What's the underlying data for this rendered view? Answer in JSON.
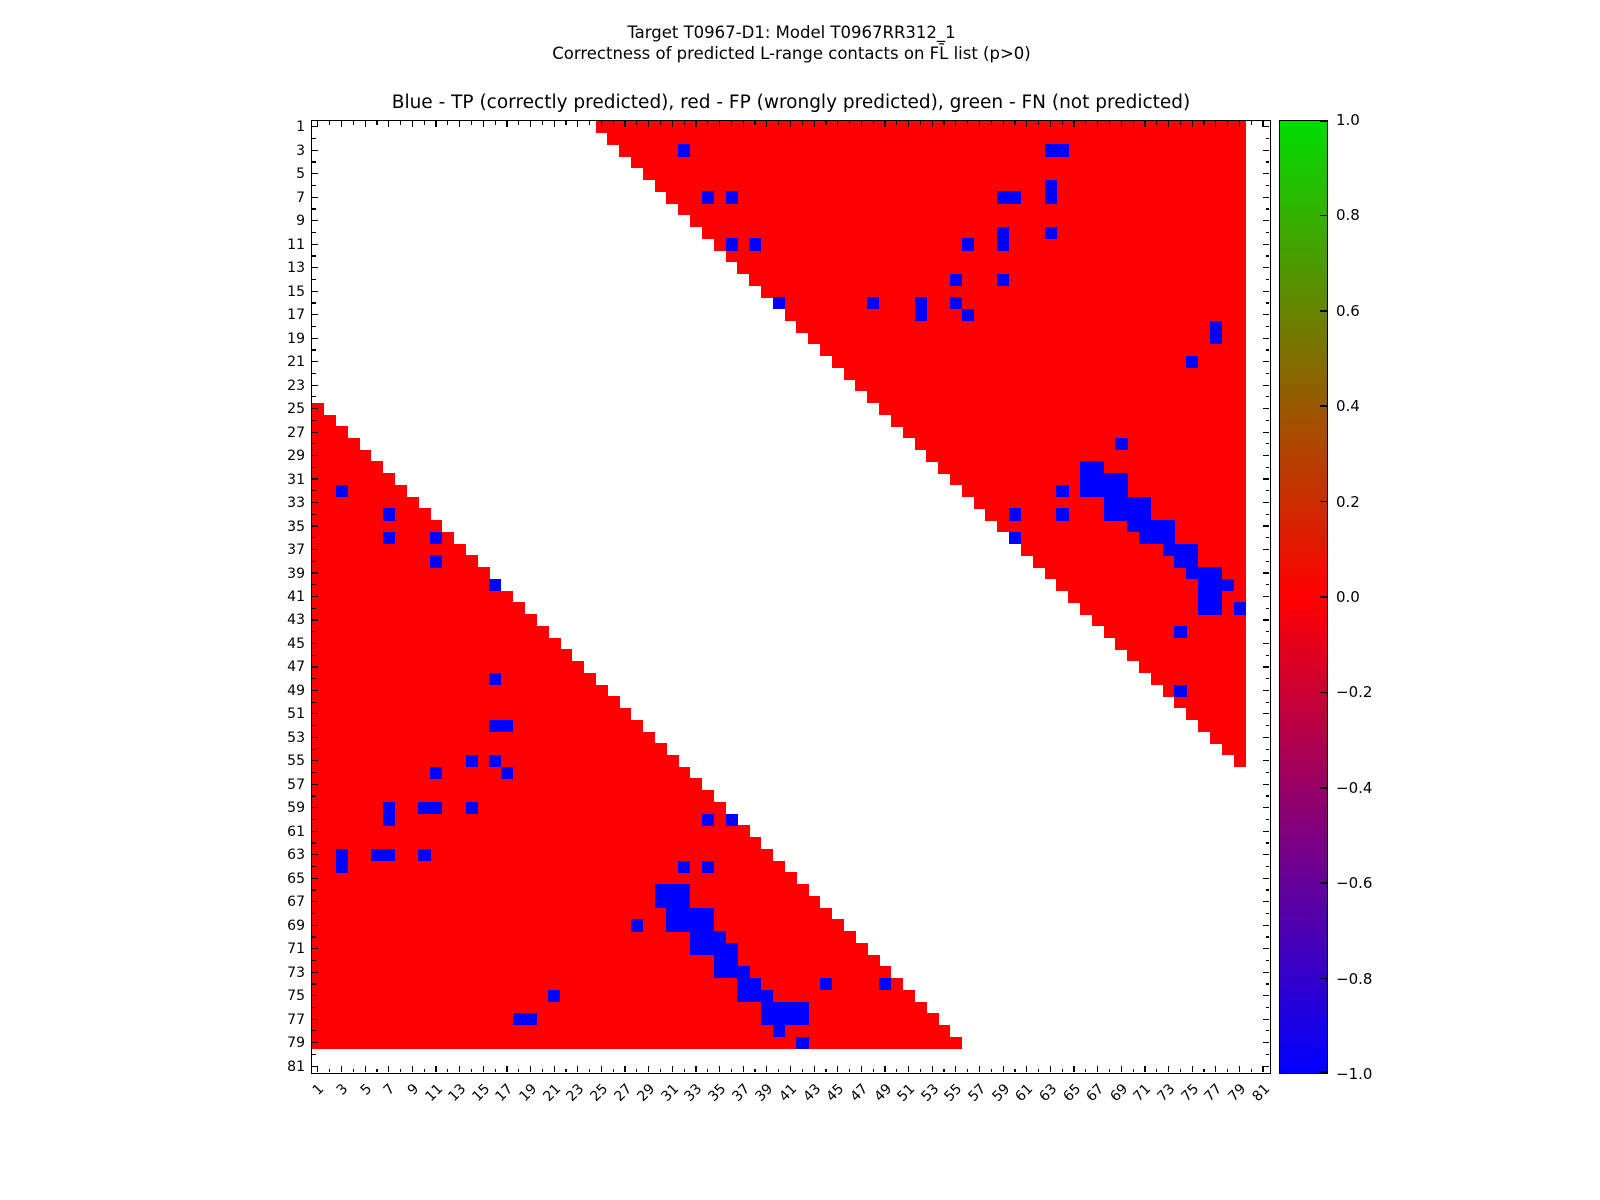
{
  "figure": {
    "title_line1": "Target T0967-D1: Model T0967RR312_1",
    "title_line2": "Correctness of predicted L-range contacts on FL̄ list (p>0)"
  },
  "plot": {
    "legend_title": "Blue - TP (correctly predicted), red - FP (wrongly predicted), green - FN (not predicted)"
  },
  "chart_data": {
    "type": "heatmap",
    "title": "Blue - TP (correctly predicted), red - FP (wrongly predicted), green - FN (not predicted)",
    "matrix_size": 81,
    "x_range": [
      1,
      81
    ],
    "y_range": [
      1,
      81
    ],
    "tick_values": [
      1,
      3,
      5,
      7,
      9,
      11,
      13,
      15,
      17,
      19,
      21,
      23,
      25,
      27,
      29,
      31,
      33,
      35,
      37,
      39,
      41,
      43,
      45,
      47,
      49,
      51,
      53,
      55,
      57,
      59,
      61,
      63,
      65,
      67,
      69,
      71,
      73,
      75,
      77,
      79,
      81
    ],
    "minor_ticks_every": 1,
    "x_label_rotation_deg": -45,
    "cell_colors": {
      "tp": "#0000ff",
      "fp": "#ff0000",
      "fn": "#00cc00",
      "background": "#ffffff"
    },
    "fp_region_rule": {
      "description": "red FP background fills all pairs (i,j) with |i-j| >= min_separation and max(i,j) <= max_residue; TP cells drawn over it",
      "min_separation": 24,
      "max_residue": 79
    },
    "symmetric": true,
    "tp_cells_lower_triangle": [
      [
        32,
        3
      ],
      [
        34,
        7
      ],
      [
        36,
        7
      ],
      [
        36,
        11
      ],
      [
        38,
        11
      ],
      [
        40,
        16
      ],
      [
        48,
        16
      ],
      [
        52,
        16
      ],
      [
        52,
        17
      ],
      [
        55,
        14
      ],
      [
        55,
        16
      ],
      [
        56,
        11
      ],
      [
        56,
        17
      ],
      [
        59,
        7
      ],
      [
        59,
        10
      ],
      [
        59,
        11
      ],
      [
        59,
        14
      ],
      [
        60,
        7
      ],
      [
        60,
        34
      ],
      [
        60,
        36
      ],
      [
        63,
        3
      ],
      [
        63,
        6
      ],
      [
        63,
        7
      ],
      [
        63,
        10
      ],
      [
        64,
        3
      ],
      [
        64,
        32
      ],
      [
        64,
        34
      ],
      [
        66,
        30
      ],
      [
        66,
        31
      ],
      [
        66,
        32
      ],
      [
        67,
        30
      ],
      [
        67,
        31
      ],
      [
        67,
        32
      ],
      [
        68,
        31
      ],
      [
        68,
        32
      ],
      [
        68,
        33
      ],
      [
        68,
        34
      ],
      [
        69,
        28
      ],
      [
        69,
        31
      ],
      [
        69,
        32
      ],
      [
        69,
        33
      ],
      [
        69,
        34
      ],
      [
        70,
        33
      ],
      [
        70,
        34
      ],
      [
        70,
        35
      ],
      [
        71,
        33
      ],
      [
        71,
        34
      ],
      [
        71,
        35
      ],
      [
        71,
        36
      ],
      [
        72,
        35
      ],
      [
        72,
        36
      ],
      [
        73,
        35
      ],
      [
        73,
        36
      ],
      [
        73,
        37
      ],
      [
        74,
        37
      ],
      [
        74,
        38
      ],
      [
        74,
        44
      ],
      [
        74,
        49
      ],
      [
        75,
        21
      ],
      [
        75,
        37
      ],
      [
        75,
        38
      ],
      [
        75,
        39
      ],
      [
        76,
        39
      ],
      [
        76,
        40
      ],
      [
        76,
        41
      ],
      [
        76,
        42
      ],
      [
        77,
        18
      ],
      [
        77,
        19
      ],
      [
        77,
        39
      ],
      [
        77,
        40
      ],
      [
        77,
        41
      ],
      [
        77,
        42
      ],
      [
        78,
        40
      ],
      [
        79,
        42
      ]
    ],
    "fn_cells": [],
    "colorbar": {
      "min": -1.0,
      "max": 1.0,
      "tick_labels": [
        "1.0",
        "0.8",
        "0.6",
        "0.4",
        "0.2",
        "0.0",
        "−0.2",
        "−0.4",
        "−0.6",
        "−0.8",
        "−1.0"
      ],
      "tick_values": [
        1.0,
        0.8,
        0.6,
        0.4,
        0.2,
        0.0,
        -0.2,
        -0.4,
        -0.6,
        -0.8,
        -1.0
      ],
      "top_color": "#00dd00",
      "middle_color": "#ff0000",
      "bottom_color": "#0000ff",
      "gradient": "linear green(+1) to red(0) to blue(-1)"
    }
  }
}
